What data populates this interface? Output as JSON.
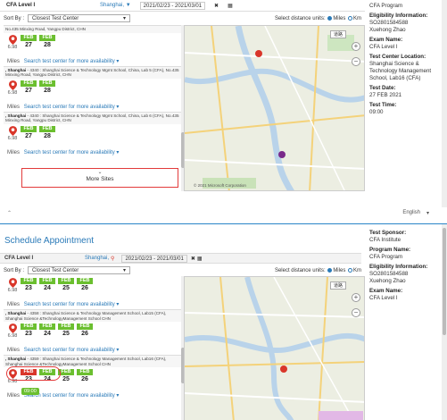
{
  "panel1": {
    "exam": "CFA Level I",
    "city": "Shanghai, ▼",
    "date_range": "2021/02/23 - 2021/03/01",
    "sort_label": "Sort By :",
    "sort_value": "Closest Test Center",
    "units_label": "Select distance units:",
    "unit_miles": "Miles",
    "unit_km": "Km",
    "first_addr": "No.435 Minxing Road, Yangpu District, CHN",
    "sites": [
      {
        "distance": "6.98",
        "unit": "Miles",
        "dates": [
          {
            "mo": "FEB",
            "dy": "27"
          },
          {
            "mo": "FEB",
            "dy": "28"
          }
        ],
        "more": "Search test center for more availability",
        "next_name": ", Shanghai",
        "next_addr": "- 4340 : Shanghai Science & Technology Mgmt School, China, Lab 5 (CFA), No.435 Minxing Road, Yangpu District, CHN"
      },
      {
        "distance": "6.98",
        "unit": "Miles",
        "dates": [
          {
            "mo": "FEB",
            "dy": "27"
          },
          {
            "mo": "FEB",
            "dy": "28"
          }
        ],
        "more": "Search test center for more availability",
        "next_name": ", Shanghai",
        "next_addr": "- 4340 : Shanghai Science & Technology Mgmt School, China, Lab 6 (CFA), No.435 Minxing Road, Yangpu District, CHN"
      },
      {
        "distance": "6.98",
        "unit": "Miles",
        "dates": [
          {
            "mo": "FEB",
            "dy": "27"
          },
          {
            "mo": "FEB",
            "dy": "28"
          }
        ],
        "more": "Search test center for more availability",
        "next_name": "",
        "next_addr": ""
      }
    ],
    "more_sites": "More Sites",
    "map_chip": "道路",
    "map_attr": "© 2021 Microsoft Corporation",
    "side": [
      {
        "label": "",
        "value": "CFA Program"
      },
      {
        "label": "Eligibility Information:",
        "value": "SO2801584588\nXuehong Zhao"
      },
      {
        "label": "Exam Name:",
        "value": "CFA Level I"
      },
      {
        "label": "Test Center Location:",
        "value": "Shanghai Science & Technology Management School, Lab16 (CFA)"
      },
      {
        "label": "Test Date:",
        "value": "27 FEB 2021"
      },
      {
        "label": "Test Time:",
        "value": "09:00"
      }
    ],
    "lang": "English"
  },
  "panel2": {
    "title": "Schedule Appointment",
    "exam": "CFA Level I",
    "city": "Shanghai,",
    "date_range": "2021/02/23 - 2021/03/01",
    "sort_label": "Sort By :",
    "sort_value": "Closest Test Center",
    "units_label": "Select distance units:",
    "unit_miles": "Miles",
    "unit_km": "Km",
    "sites": [
      {
        "distance": "6.98",
        "unit": "Miles",
        "dates": [
          {
            "mo": "FEB",
            "dy": "23"
          },
          {
            "mo": "FEB",
            "dy": "24"
          },
          {
            "mo": "FEB",
            "dy": "25"
          },
          {
            "mo": "FEB",
            "dy": "26"
          }
        ],
        "more": "Search test center for more availability",
        "next_name": ", Shanghai",
        "next_addr": "- 4358 : Shanghai Science & Technology Management School, Lab15 (CFA), Shanghai Science &TechnologyManagement School CHN"
      },
      {
        "distance": "6.98",
        "unit": "Miles",
        "dates": [
          {
            "mo": "FEB",
            "dy": "23"
          },
          {
            "mo": "FEB",
            "dy": "24"
          },
          {
            "mo": "FEB",
            "dy": "25"
          },
          {
            "mo": "FEB",
            "dy": "26"
          }
        ],
        "more": "Search test center for more availability",
        "next_name": ", Shanghai",
        "next_addr": "- 4359 : Shanghai Science & Technology Management School, Lab16 (CFA), Shanghai Science &TechnologyManagement School CHN"
      },
      {
        "distance": "6.98",
        "unit": "Miles",
        "dates": [
          {
            "mo": "FEB",
            "dy": "23"
          },
          {
            "mo": "FEB",
            "dy": "24"
          },
          {
            "mo": "FEB",
            "dy": "25"
          },
          {
            "mo": "FEB",
            "dy": "26"
          }
        ],
        "time": "09:00",
        "more": "Search test center for more availability",
        "next_name": "",
        "next_addr": ""
      }
    ],
    "map_chip": "道路",
    "side": [
      {
        "label": "Test Sponsor:",
        "value": "CFA Institute"
      },
      {
        "label": "Program Name:",
        "value": "CFA Program"
      },
      {
        "label": "Eligibility Information:",
        "value": "SO2801584588\nXuehong Zhao"
      },
      {
        "label": "Exam Name:",
        "value": "CFA Level I"
      }
    ]
  },
  "colors": {
    "accent": "#2a7ab8",
    "available": "#6bbf2f",
    "selected": "#d9362a",
    "highlight": "#e23b3b"
  }
}
